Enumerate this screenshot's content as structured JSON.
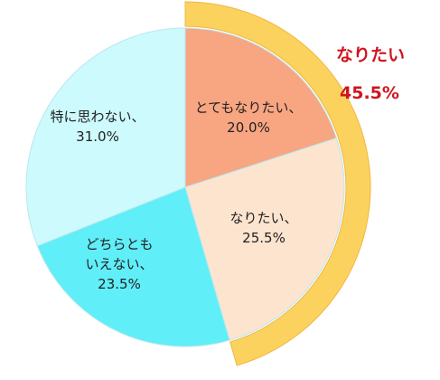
{
  "chart_data": {
    "type": "pie",
    "categories": [
      "とてもなりたい、",
      "なりたい、",
      "どちらともいえない、",
      "特に思わない、"
    ],
    "values": [
      20.0,
      25.5,
      23.5,
      31.0
    ],
    "value_labels": [
      "20.0%",
      "25.5%",
      "23.5%",
      "31.0%"
    ],
    "colors": [
      "#f8a582",
      "#fde4cf",
      "#60eef8",
      "#cdfafd"
    ],
    "highlight": {
      "label": "なりたい",
      "value": 45.5,
      "value_label": "45.5%",
      "color": "#fcd25e"
    }
  }
}
